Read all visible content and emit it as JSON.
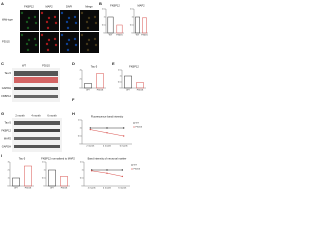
{
  "letters": [
    "A",
    "B",
    "C",
    "D",
    "E",
    "F",
    "G",
    "H",
    "I"
  ],
  "images": {
    "columns": [
      "FKBP12",
      "MAP2",
      "DAPI",
      "Merge"
    ],
    "rows": [
      "Wild-type",
      "P301S"
    ]
  },
  "blot_c": {
    "lanes": [
      "WT",
      "P301S"
    ],
    "bands": [
      "Tau-5",
      "GAPDH",
      "FKBP12"
    ]
  },
  "blot_g": {
    "lanes": [
      "2 month",
      "4 month",
      "6 month"
    ],
    "bands": [
      "Tau-5",
      "FKBP12",
      "MAP2",
      "GAPDH"
    ]
  },
  "charts": [
    {
      "type": "bar",
      "title": "FKBP12",
      "categories": [
        "WT",
        "P301S"
      ],
      "values": [
        1.0,
        0.5
      ],
      "colors": [
        "#333333",
        "#d9534f"
      ],
      "ylim": [
        0,
        1.5
      ],
      "yticks": [
        0,
        0.5,
        1,
        1.5
      ]
    },
    {
      "type": "bar",
      "title": "MAP2",
      "categories": [
        "WT",
        "P301S"
      ],
      "values": [
        1.0,
        0.95
      ],
      "colors": [
        "#333333",
        "#d9534f"
      ],
      "ylim": [
        0,
        1.5
      ],
      "yticks": [
        0,
        0.5,
        1,
        1.5
      ]
    },
    {
      "type": "bar",
      "title": "Tau-5",
      "categories": [
        "WT",
        "P301S"
      ],
      "values": [
        1.0,
        3.2
      ],
      "colors": [
        "#333333",
        "#d9534f"
      ],
      "ylim": [
        0,
        4
      ],
      "yticks": [
        0,
        2,
        4
      ]
    },
    {
      "type": "bar",
      "title": "FKBP12",
      "categories": [
        "WT",
        "P301S"
      ],
      "values": [
        1.0,
        0.45
      ],
      "colors": [
        "#333333",
        "#d9534f"
      ],
      "ylim": [
        0,
        1.5
      ],
      "yticks": [
        0,
        0.5,
        1,
        1.5
      ]
    },
    {
      "type": "line",
      "title": "Fluorescence band intensity",
      "x": [
        "2 month",
        "4 month",
        "6 month"
      ],
      "series": [
        {
          "name": "WT",
          "color": "#333333",
          "values": [
            1.0,
            1.0,
            1.0
          ]
        },
        {
          "name": "P301S",
          "color": "#d9534f",
          "values": [
            0.9,
            0.7,
            0.5
          ]
        }
      ],
      "ylim": [
        0,
        1.5
      ],
      "yticks": [
        0,
        0.5,
        1,
        1.5
      ]
    },
    {
      "type": "bar",
      "title": "Tau-5",
      "categories": [
        "WT",
        "P301S"
      ],
      "values": [
        1.0,
        2.5
      ],
      "colors": [
        "#333333",
        "#d9534f"
      ],
      "ylim": [
        0,
        3
      ],
      "yticks": [
        0,
        1,
        2,
        3
      ]
    },
    {
      "type": "bar",
      "title": "FKBP12 normalized to MAP2",
      "categories": [
        "WT",
        "P301S"
      ],
      "values": [
        1.0,
        0.6
      ],
      "colors": [
        "#333333",
        "#d9534f"
      ],
      "ylim": [
        0,
        1.5
      ],
      "yticks": [
        0,
        0.5,
        1,
        1.5
      ]
    },
    {
      "type": "line",
      "title": "Band intensity of neuronal marker",
      "x": [
        "2 month",
        "4 month",
        "6 month"
      ],
      "series": [
        {
          "name": "WT",
          "color": "#333333",
          "values": [
            1.0,
            1.0,
            1.0
          ]
        },
        {
          "name": "P301S",
          "color": "#d9534f",
          "values": [
            0.95,
            0.8,
            0.6
          ]
        }
      ],
      "ylim": [
        0,
        1.5
      ],
      "yticks": [
        0,
        0.5,
        1,
        1.5
      ]
    }
  ]
}
